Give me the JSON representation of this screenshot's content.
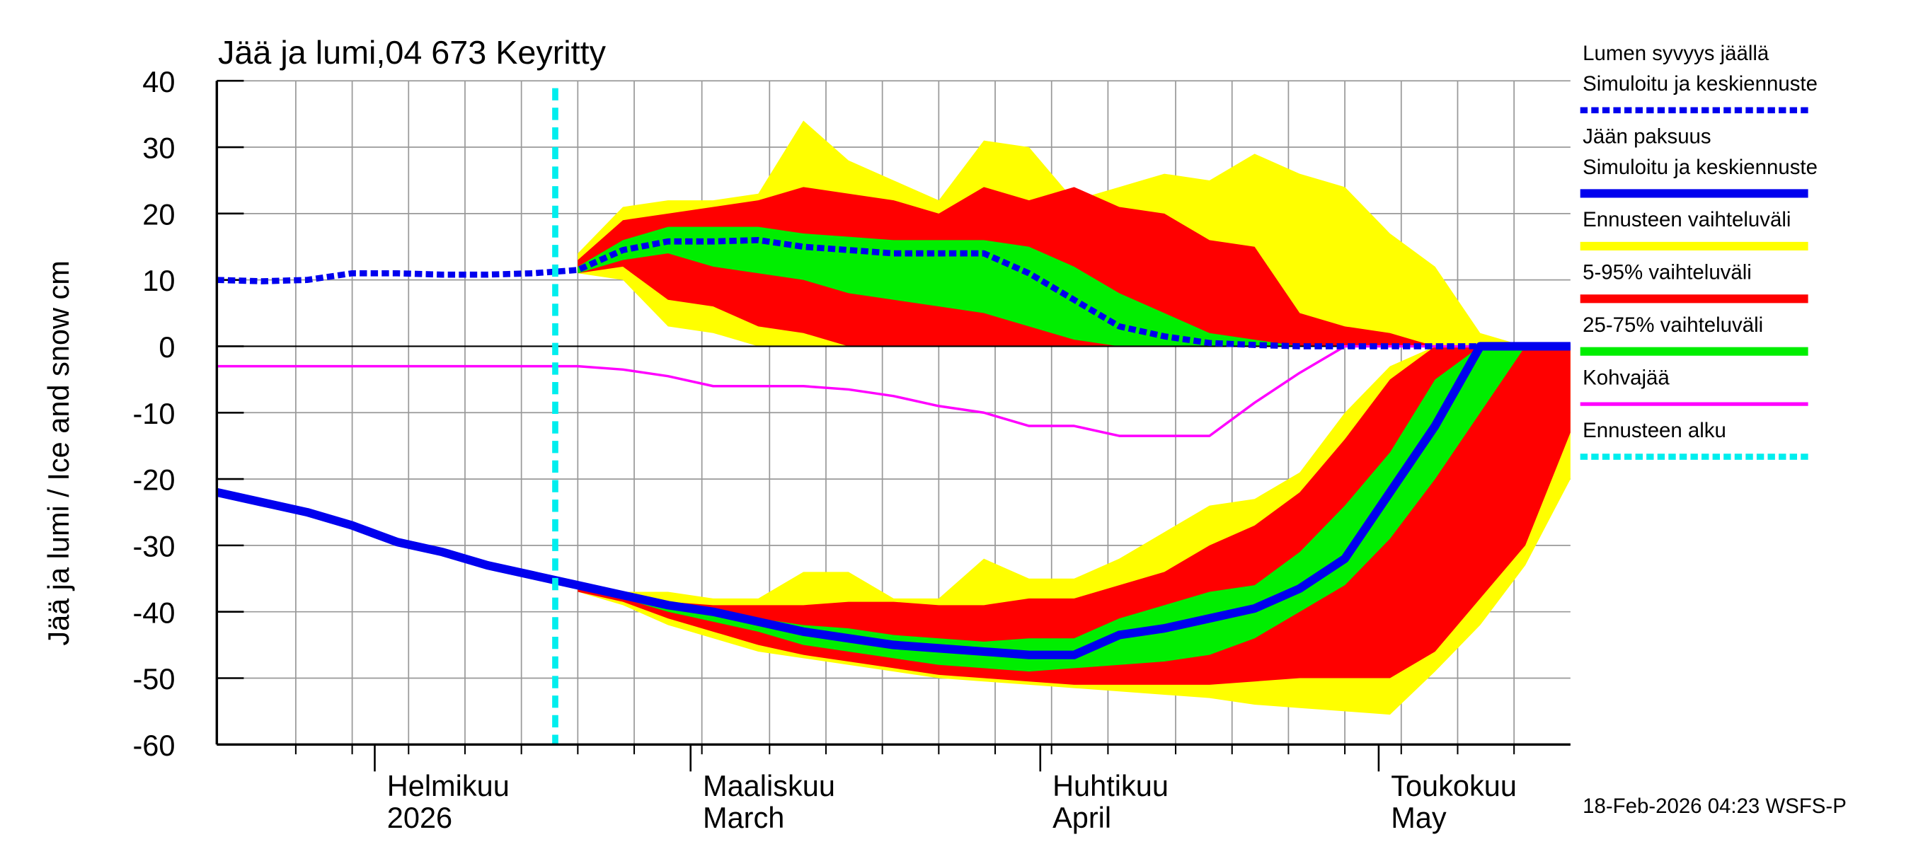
{
  "chart_data": {
    "type": "line",
    "title": "Jää ja lumi,04 673 Keyritty",
    "ylabel": "Jää ja lumi / Ice and snow    cm",
    "footer": "18-Feb-2026 04:23 WSFS-P",
    "x": [
      -14,
      -10,
      -6,
      -2,
      2,
      6,
      10,
      14,
      18,
      22,
      26,
      30,
      34,
      38,
      42,
      46,
      50,
      54,
      58,
      62,
      66,
      70,
      74,
      78,
      82,
      86,
      90,
      94,
      98,
      102,
      106
    ],
    "xlim": [
      -14,
      106
    ],
    "xticks": [
      {
        "value": 0,
        "label": [
          "Helmikuu",
          "2026"
        ]
      },
      {
        "value": 28,
        "label": [
          "Maaliskuu",
          "March"
        ]
      },
      {
        "value": 59,
        "label": [
          "Huhtikuu",
          "April"
        ]
      },
      {
        "value": 89,
        "label": [
          "Toukokuu",
          "May"
        ]
      }
    ],
    "xgrid": [
      -7,
      -2,
      3,
      8,
      13,
      18,
      23,
      29,
      35,
      40,
      45,
      50,
      55,
      60,
      65,
      71,
      76,
      81,
      86,
      91,
      96,
      101
    ],
    "ylim": [
      -60,
      40
    ],
    "yticks": [
      -60,
      -50,
      -40,
      -30,
      -20,
      -10,
      0,
      10,
      20,
      30,
      40
    ],
    "grid": true,
    "bands": [
      {
        "name": [
          "Ennusteen vaihteluväli"
        ],
        "color": "#ffff00",
        "snow_high": [
          null,
          null,
          null,
          null,
          null,
          null,
          null,
          null,
          14,
          21,
          22,
          22,
          23,
          34,
          28,
          25,
          22,
          31,
          30,
          22,
          24,
          26,
          25,
          29,
          26,
          24,
          17,
          12,
          2,
          0,
          0
        ],
        "snow_low": [
          null,
          null,
          null,
          null,
          null,
          null,
          null,
          null,
          11,
          10,
          3,
          2,
          0,
          0,
          0,
          0,
          0,
          0,
          0,
          0,
          0,
          0,
          0,
          0,
          0,
          0,
          0,
          0,
          0,
          0,
          0
        ],
        "ice_high": [
          null,
          null,
          null,
          null,
          null,
          null,
          null,
          null,
          -36,
          -37,
          -37,
          -38,
          -38,
          -34,
          -34,
          -38,
          -38,
          -32,
          -35,
          -35,
          -32,
          -28,
          -24,
          -23,
          -19,
          -10,
          -3,
          0,
          0,
          0,
          0
        ],
        "ice_low": [
          null,
          null,
          null,
          null,
          null,
          null,
          null,
          null,
          -37,
          -39,
          -42,
          -44,
          -46,
          -47,
          -48,
          -49,
          -50,
          -50.5,
          -51,
          -51.5,
          -52,
          -52.5,
          -53,
          -54,
          -54.5,
          -55,
          -55.5,
          -49,
          -42,
          -33,
          -20
        ]
      },
      {
        "name": [
          "5-95% vaihteluväli"
        ],
        "color": "#ff0000",
        "snow_high": [
          null,
          null,
          null,
          null,
          null,
          null,
          null,
          null,
          13,
          19,
          20,
          21,
          22,
          24,
          23,
          22,
          20,
          24,
          22,
          24,
          21,
          20,
          16,
          15,
          5,
          3,
          2,
          0,
          0,
          0,
          0
        ],
        "snow_low": [
          null,
          null,
          null,
          null,
          null,
          null,
          null,
          null,
          11,
          12,
          7,
          6,
          3,
          2,
          0,
          0,
          0,
          0,
          0,
          0,
          0,
          0,
          0,
          0,
          0,
          0,
          0,
          0,
          0,
          0,
          0
        ],
        "ice_high": [
          null,
          null,
          null,
          null,
          null,
          null,
          null,
          null,
          -36.5,
          -37.5,
          -38.5,
          -39,
          -39,
          -39,
          -38.5,
          -38.5,
          -39,
          -39,
          -38,
          -38,
          -36,
          -34,
          -30,
          -27,
          -22,
          -14,
          -5,
          0,
          0,
          0,
          0
        ],
        "ice_low": [
          null,
          null,
          null,
          null,
          null,
          null,
          null,
          null,
          -37,
          -38.5,
          -41,
          -43,
          -45,
          -46.5,
          -47.5,
          -48.5,
          -49.5,
          -50,
          -50.5,
          -51,
          -51,
          -51,
          -51,
          -50.5,
          -50,
          -50,
          -50,
          -46,
          -38,
          -30,
          -13
        ]
      },
      {
        "name": [
          "25-75% vaihteluväli"
        ],
        "color": "#00ee00",
        "snow_high": [
          null,
          null,
          null,
          null,
          null,
          null,
          null,
          null,
          12,
          16,
          18,
          18,
          18,
          17,
          16.5,
          16,
          16,
          16,
          15,
          12,
          8,
          5,
          2,
          1,
          0,
          0,
          0,
          0,
          0,
          0,
          0
        ],
        "snow_low": [
          null,
          null,
          null,
          null,
          null,
          null,
          null,
          null,
          11,
          13,
          14,
          12,
          11,
          10,
          8,
          7,
          6,
          5,
          3,
          1,
          0,
          0,
          0,
          0,
          0,
          0,
          0,
          0,
          0,
          0,
          0
        ],
        "ice_high": [
          null,
          null,
          null,
          null,
          null,
          null,
          null,
          null,
          -36,
          -37.5,
          -38.5,
          -39.5,
          -41,
          -42,
          -42.5,
          -43.5,
          -44,
          -44.5,
          -44,
          -44,
          -41,
          -39,
          -37,
          -36,
          -31,
          -24,
          -16,
          -5,
          0,
          0,
          0
        ],
        "ice_low": [
          null,
          null,
          null,
          null,
          null,
          null,
          null,
          null,
          -36.5,
          -38,
          -40,
          -41.5,
          -43,
          -45,
          -46,
          -47,
          -48,
          -48.5,
          -49,
          -48.5,
          -48,
          -47.5,
          -46.5,
          -44,
          -40,
          -36,
          -29,
          -20,
          -10,
          0,
          0
        ]
      }
    ],
    "series": [
      {
        "name": [
          "Lumen syvyys jäällä",
          "Simuloitu ja keskiennuste"
        ],
        "color": "#0000ee",
        "dash": true,
        "values": [
          10,
          9.8,
          10,
          11,
          11,
          10.8,
          10.8,
          11,
          11.5,
          14.5,
          15.8,
          15.8,
          16,
          15,
          14.5,
          14,
          14,
          14,
          11,
          7,
          3,
          1.5,
          0.5,
          0.2,
          0,
          0,
          0,
          0,
          0,
          0,
          0
        ]
      },
      {
        "name": [
          "Jään paksuus",
          "Simuloitu ja keskiennuste"
        ],
        "color": "#0000ee",
        "dash": false,
        "values": [
          -22,
          -23.5,
          -25,
          -27,
          -29.5,
          -31,
          -33,
          -34.5,
          -36,
          -37.5,
          -39,
          -40,
          -41.5,
          -43,
          -44,
          -45,
          -45.5,
          -46,
          -46.5,
          -46.5,
          -43.5,
          -42.5,
          -41,
          -39.5,
          -36.5,
          -32,
          -22,
          -12,
          0,
          0,
          0
        ]
      },
      {
        "name": [
          "Kohvajää"
        ],
        "color": "#ff00ff",
        "dash": false,
        "values": [
          -3,
          -3,
          -3,
          -3,
          -3,
          -3,
          -3,
          -3,
          -3,
          -3.5,
          -4.5,
          -6,
          -6,
          -6,
          -6.5,
          -7.5,
          -9,
          -10,
          -12,
          -12,
          -13.5,
          -13.5,
          -13.5,
          -8.5,
          -4,
          0,
          0,
          0,
          0,
          0,
          0
        ]
      }
    ],
    "forecast_start": {
      "name": [
        "Ennusteen alku"
      ],
      "color": "#00eeee",
      "x": 16
    }
  }
}
